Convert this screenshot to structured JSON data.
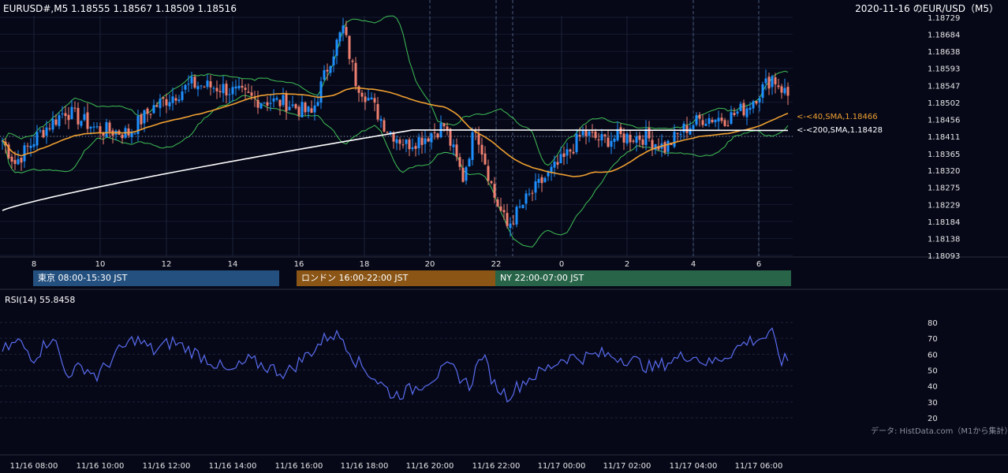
{
  "header": {
    "symbol_info": "EURUSD#,M5 1.18555 1.18567 1.18509 1.18516",
    "chart_title": "2020-11-16 のEUR/USD（M5）"
  },
  "price_axis": {
    "ticks": [
      "1.18729",
      "1.18684",
      "1.18638",
      "1.18593",
      "1.18547",
      "1.18502",
      "1.18456",
      "1.18411",
      "1.18365",
      "1.18320",
      "1.18275",
      "1.18229",
      "1.18184",
      "1.18138",
      "1.18093"
    ],
    "range": [
      1.18093,
      1.18729
    ]
  },
  "time_axis_hours": [
    "8",
    "10",
    "12",
    "14",
    "16",
    "18",
    "20",
    "22",
    "0",
    "2",
    "4",
    "6"
  ],
  "indicator_labels": {
    "sma40": "<-<40,SMA,1.18466",
    "sma200": "<-<200,SMA,1.18428"
  },
  "sessions": [
    {
      "label": "東京 08:00-15:30 JST",
      "color": "#24507f"
    },
    {
      "label": "ロンドン 16:00-22:00 JST",
      "color": "#8a5515"
    },
    {
      "label": "NY 22:00-07:00 JST",
      "color": "#286448"
    }
  ],
  "rsi": {
    "label": "RSI(14) 55.8458",
    "ticks": [
      "80",
      "70",
      "60",
      "50",
      "40",
      "30",
      "20"
    ],
    "range": [
      20,
      80
    ]
  },
  "credit": "データ: HistData.com（M1から集計）",
  "bottom_axis": [
    "11/16 08:00",
    "11/16 10:00",
    "11/16 12:00",
    "11/16 14:00",
    "11/16 16:00",
    "11/16 18:00",
    "11/16 20:00",
    "11/16 22:00",
    "11/17 00:00",
    "11/17 02:00",
    "11/17 04:00",
    "11/17 06:00"
  ],
  "colors": {
    "background": "#060818",
    "bull": "#1e90ff",
    "bear": "#f08070",
    "sma40": "#f0a030",
    "sma200": "#ffffff",
    "bollinger": "#3fbf55",
    "rsi_line": "#5a6cf0"
  },
  "chart_data": {
    "type": "candlestick",
    "price_anchors": [
      [
        0,
        1.184
      ],
      [
        4,
        1.1834
      ],
      [
        12,
        1.1842
      ],
      [
        20,
        1.1848
      ],
      [
        30,
        1.1843
      ],
      [
        40,
        1.1842
      ],
      [
        48,
        1.1849
      ],
      [
        60,
        1.1855
      ],
      [
        70,
        1.1854
      ],
      [
        80,
        1.1851
      ],
      [
        90,
        1.185
      ],
      [
        98,
        1.1847
      ],
      [
        104,
        1.1862
      ],
      [
        108,
        1.187
      ],
      [
        112,
        1.1856
      ],
      [
        117,
        1.185
      ],
      [
        122,
        1.1843
      ],
      [
        128,
        1.1839
      ],
      [
        134,
        1.1841
      ],
      [
        140,
        1.1844
      ],
      [
        146,
        1.183
      ],
      [
        150,
        1.1844
      ],
      [
        156,
        1.1825
      ],
      [
        160,
        1.1817
      ],
      [
        166,
        1.1824
      ],
      [
        172,
        1.183
      ],
      [
        178,
        1.1835
      ],
      [
        184,
        1.1842
      ],
      [
        190,
        1.184
      ],
      [
        196,
        1.1841
      ],
      [
        204,
        1.1841
      ],
      [
        210,
        1.1838
      ],
      [
        216,
        1.1843
      ],
      [
        222,
        1.1846
      ],
      [
        230,
        1.1846
      ],
      [
        236,
        1.1849
      ],
      [
        240,
        1.1853
      ],
      [
        244,
        1.1857
      ],
      [
        249,
        1.1852
      ]
    ],
    "rsi_anchors": [
      [
        0,
        62
      ],
      [
        5,
        68
      ],
      [
        10,
        58
      ],
      [
        16,
        72
      ],
      [
        20,
        48
      ],
      [
        26,
        52
      ],
      [
        30,
        46
      ],
      [
        36,
        60
      ],
      [
        42,
        70
      ],
      [
        48,
        62
      ],
      [
        54,
        68
      ],
      [
        60,
        62
      ],
      [
        66,
        56
      ],
      [
        72,
        48
      ],
      [
        78,
        56
      ],
      [
        84,
        52
      ],
      [
        90,
        48
      ],
      [
        98,
        62
      ],
      [
        104,
        73
      ],
      [
        108,
        70
      ],
      [
        112,
        56
      ],
      [
        118,
        45
      ],
      [
        124,
        34
      ],
      [
        130,
        38
      ],
      [
        136,
        45
      ],
      [
        142,
        52
      ],
      [
        148,
        40
      ],
      [
        152,
        60
      ],
      [
        156,
        41
      ],
      [
        160,
        34
      ],
      [
        166,
        44
      ],
      [
        172,
        50
      ],
      [
        178,
        58
      ],
      [
        184,
        58
      ],
      [
        190,
        60
      ],
      [
        196,
        58
      ],
      [
        200,
        56
      ],
      [
        206,
        51
      ],
      [
        212,
        56
      ],
      [
        218,
        60
      ],
      [
        224,
        54
      ],
      [
        230,
        60
      ],
      [
        236,
        68
      ],
      [
        240,
        70
      ],
      [
        244,
        72
      ],
      [
        247,
        56
      ]
    ],
    "y_range": [
      1.18093,
      1.18729
    ],
    "rsi_range": [
      20,
      80
    ]
  }
}
